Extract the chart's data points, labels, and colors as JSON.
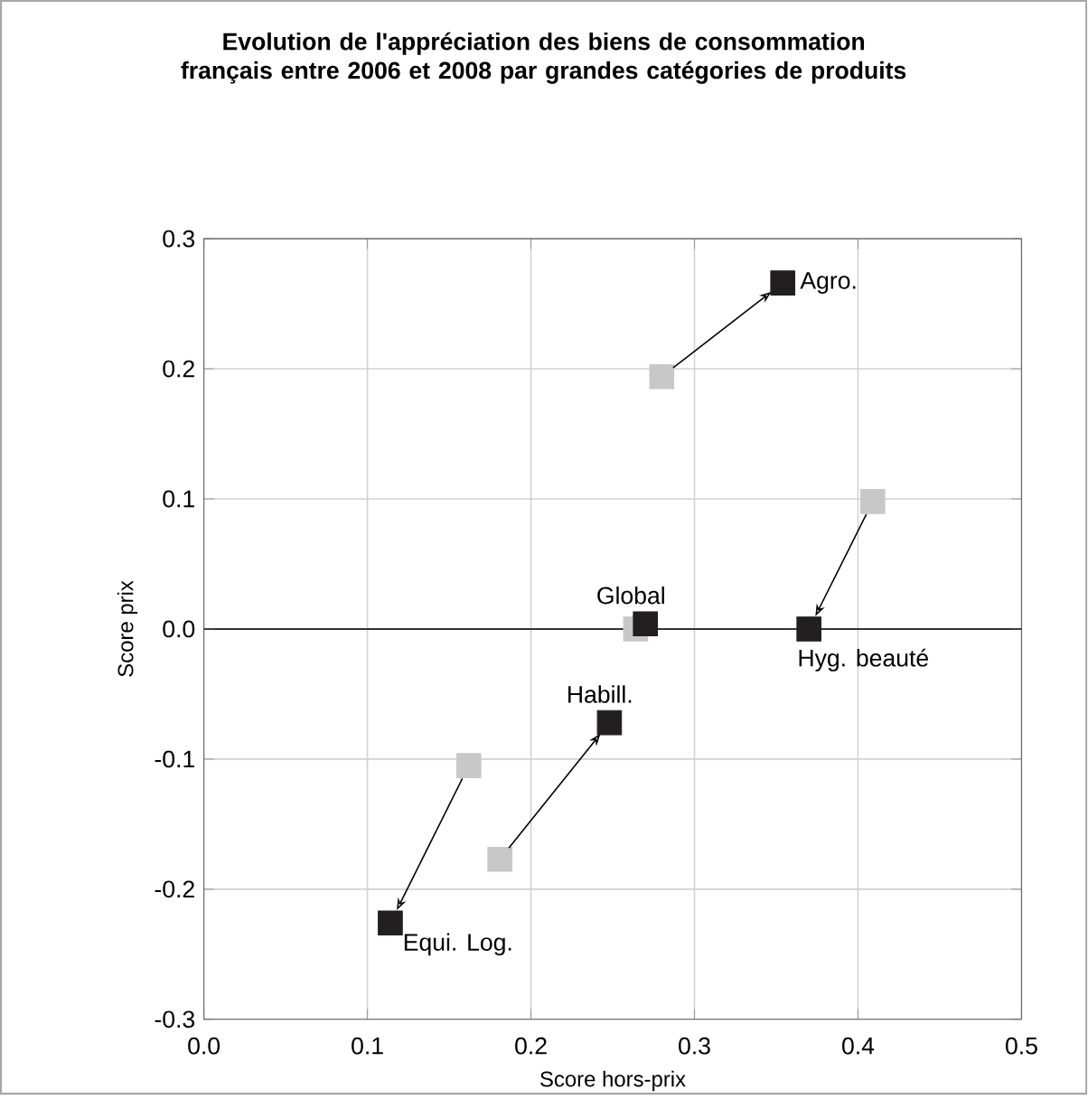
{
  "chart_data": {
    "type": "scatter",
    "title": "Evolution de l'appréciation des biens de consommation français entre 2006 et 2008 par grandes catégories de produits",
    "xlabel": "Score hors-prix",
    "ylabel": "Score prix",
    "xlim": [
      0,
      0.5
    ],
    "ylim": [
      -0.3,
      0.3
    ],
    "xticks": [
      {
        "value": 0,
        "label": "0.0"
      },
      0.1,
      0.2,
      0.3,
      0.4,
      0.5
    ],
    "yticks": [
      {
        "value": -0.3,
        "label": "-0.3"
      },
      {
        "value": -0.2,
        "label": "-0.2"
      },
      {
        "value": -0.1,
        "label": "-0.1"
      },
      {
        "value": 0,
        "label": "0.0"
      },
      0.1,
      0.2,
      0.3
    ],
    "grid": true,
    "marker": "square",
    "series": [
      {
        "color": "#c8c8c8",
        "x": [
          0.28,
          0.264,
          0.409,
          0.181,
          0.162
        ],
        "values": [
          0.194,
          0.0,
          0.098,
          -0.177,
          -0.105
        ]
      },
      {
        "color": "#231f20",
        "x": [
          0.354,
          0.27,
          0.37,
          0.248,
          0.114
        ],
        "values": [
          0.266,
          0.004,
          0.0,
          -0.072,
          -0.226
        ]
      }
    ],
    "annotations": [
      {
        "text": "Agro.",
        "x": 0.354,
        "y": 0.266
      },
      {
        "text": "Global",
        "x": 0.27,
        "y": 0.004
      },
      {
        "text": "Hyg. beauté",
        "x": 0.37,
        "y": 0.0
      },
      {
        "text": "Habill.",
        "x": 0.248,
        "y": -0.072
      },
      {
        "text": "Equi. Log.",
        "x": 0.114,
        "y": -0.226
      }
    ]
  }
}
